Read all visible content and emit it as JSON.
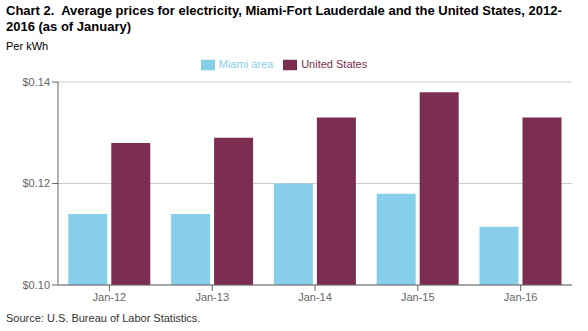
{
  "chart_data": {
    "type": "bar",
    "title": "Chart 2.  Average prices for electricity, Miami-Fort Lauderdale and the United States, 2012-2016 (as of January)",
    "ylabel": "Per kWh",
    "source": "Source: U.S. Bureau of Labor Statistics.",
    "categories": [
      "Jan-12",
      "Jan-13",
      "Jan-14",
      "Jan-15",
      "Jan-16"
    ],
    "series": [
      {
        "name": "Miami area",
        "color": "#87CEEB",
        "values": [
          0.114,
          0.114,
          0.12,
          0.118,
          0.1115
        ]
      },
      {
        "name": "United States",
        "color": "#7B2D52",
        "values": [
          0.128,
          0.129,
          0.133,
          0.138,
          0.133
        ]
      }
    ],
    "ylim": [
      0.1,
      0.14
    ],
    "yticks": [
      {
        "value": 0.1,
        "label": "$0.10"
      },
      {
        "value": 0.12,
        "label": "$0.12"
      },
      {
        "value": 0.14,
        "label": "$0.14"
      }
    ],
    "grid": true,
    "legend": "top"
  }
}
